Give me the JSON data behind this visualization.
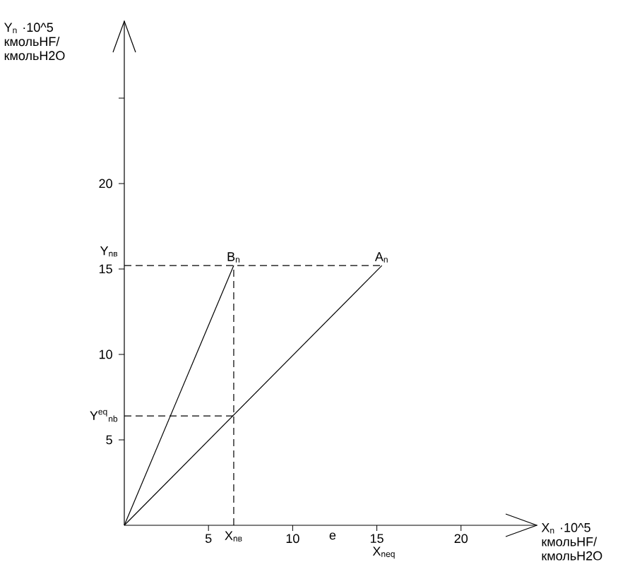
{
  "chart_data": {
    "type": "line",
    "xlabel": "X$_{n}$ ·10^5 кмольHF/ кмольH2O",
    "ylabel": "Y$_{n}$ ·10^5 кмольHF/ кмольH2O",
    "xlim": [
      0,
      24.5
    ],
    "ylim": [
      0,
      29.5
    ],
    "xticks": [
      5,
      10,
      15,
      20
    ],
    "yticks": [
      5,
      10,
      15,
      20,
      {
        "value": 25,
        "label": null
      }
    ],
    "grid": false,
    "series": [
      {
        "x": [
          0,
          6.5
        ],
        "values": [
          0,
          15.2
        ],
        "color": "#000000",
        "line_style": "solid"
      },
      {
        "x": [
          0,
          15.3
        ],
        "values": [
          0,
          15.2
        ],
        "color": "#000000",
        "line_style": "solid"
      },
      {
        "x": [
          0,
          15.3
        ],
        "values": [
          15.2,
          15.2
        ],
        "color": "#000000",
        "line_style": "dashed"
      },
      {
        "x": [
          6.5,
          6.5
        ],
        "values": [
          0,
          15.2
        ],
        "color": "#000000",
        "line_style": "dashed"
      },
      {
        "x": [
          0,
          6.5
        ],
        "values": [
          6.4,
          6.4
        ],
        "color": "#000000",
        "line_style": "dashed"
      }
    ],
    "annotations": [
      {
        "text": "B$_{n}$",
        "x": 6.5,
        "y": 15.2
      },
      {
        "text": "A$_{n}$",
        "x": 15.3,
        "y": 15.2
      },
      {
        "text": "Y$_{nв}$",
        "x": 0,
        "y": 15.2
      },
      {
        "text": "Y$^{eq}$$_{nb}$",
        "x": 0,
        "y": 6.4
      },
      {
        "text": "X$_{nв}$",
        "x": 6.5,
        "y": 0
      },
      "e",
      "X$_{neq}$"
    ]
  }
}
